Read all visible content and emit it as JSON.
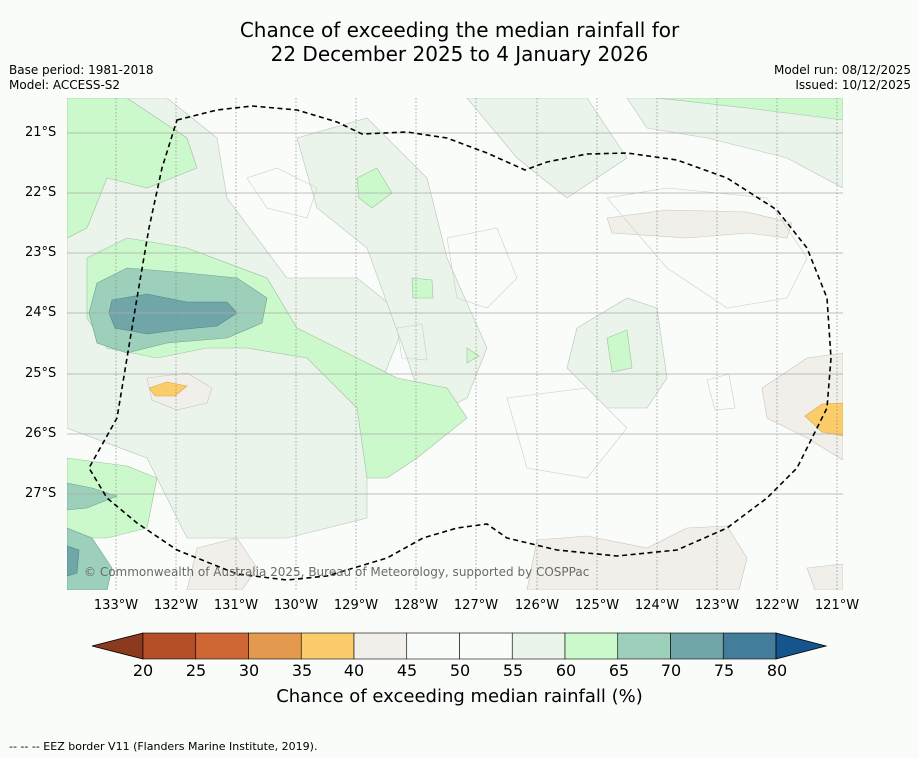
{
  "title": {
    "line1": "Chance of exceeding the median rainfall for",
    "line2": "22 December 2025 to 4 January 2026"
  },
  "meta": {
    "base_period": "Base period: 1981-2018",
    "model": "Model: ACCESS-S2",
    "model_run": "Model run: 08/12/2025",
    "issued": "Issued: 10/12/2025"
  },
  "map": {
    "copyright": "© Commonwealth of Australia 2025, Bureau of Meteorology, supported by COSPPac",
    "longitude_labels": [
      "133°W",
      "132°W",
      "131°W",
      "130°W",
      "129°W",
      "128°W",
      "127°W",
      "126°W",
      "125°W",
      "124°W",
      "123°W",
      "122°W",
      "121°W"
    ],
    "latitude_labels": [
      "21°S",
      "22°S",
      "23°S",
      "24°S",
      "25°S",
      "26°S",
      "27°S"
    ]
  },
  "colorbar": {
    "ticks": [
      "20",
      "25",
      "30",
      "35",
      "40",
      "45",
      "50",
      "55",
      "60",
      "65",
      "70",
      "75",
      "80"
    ],
    "colors": [
      "#8c3a1e",
      "#b44e27",
      "#cf6734",
      "#e39a4f",
      "#fbcd6a",
      "#f1efea",
      "#fafcfa",
      "#fafcfa",
      "#ebf4eb",
      "#ccf9cc",
      "#9dd0bb",
      "#70a6a8",
      "#447d9c",
      "#15548c"
    ],
    "label": "Chance of exceeding median rainfall (%)"
  },
  "footer": "--  --  -- EEZ border V11 (Flanders Marine Institute, 2019)."
}
